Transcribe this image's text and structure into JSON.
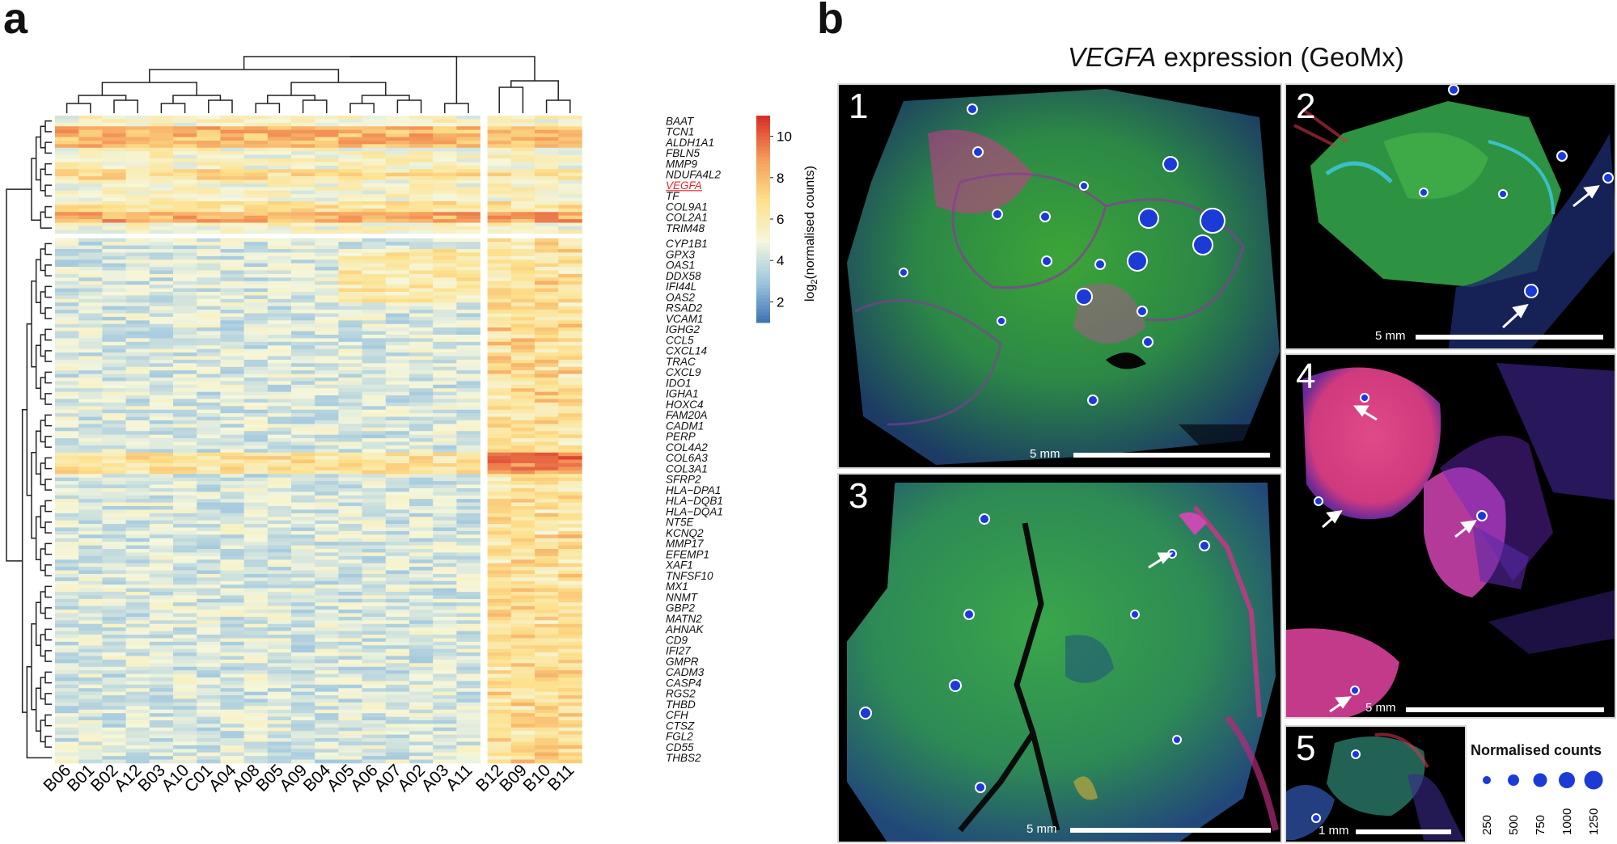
{
  "panel_a": {
    "letter": "a",
    "colorbar_label": "log2(normalised counts)",
    "colorbar_label_parts": {
      "pre": "log",
      "sub": "2",
      "post": "(normalised counts)"
    }
  },
  "panel_b": {
    "letter": "b",
    "title_gene": "VEGFA",
    "title_rest": " expression (GeoMx)",
    "images": [
      {
        "number": "1",
        "scale": "5 mm"
      },
      {
        "number": "2",
        "scale": "5 mm"
      },
      {
        "number": "3",
        "scale": "5 mm"
      },
      {
        "number": "4",
        "scale": "5 mm"
      },
      {
        "number": "5",
        "scale": "1 mm"
      }
    ],
    "size_legend": {
      "title": "Normalised counts",
      "values": [
        "250",
        "500",
        "750",
        "1000",
        "1250"
      ]
    }
  },
  "chart_data": {
    "type": "heatmap",
    "title": "",
    "samples": [
      "B06",
      "B01",
      "B02",
      "A12",
      "B03",
      "A10",
      "C01",
      "A04",
      "A08",
      "B05",
      "A09",
      "B04",
      "A05",
      "A06",
      "A07",
      "A02",
      "A03",
      "A11",
      "B12",
      "B09",
      "B10",
      "B11"
    ],
    "sample_groups": [
      18,
      4
    ],
    "genes": [
      "BAAT",
      "TCN1",
      "ALDH1A1",
      "FBLN5",
      "MMP9",
      "NDUFA4L2",
      "VEGFA",
      "TF",
      "COL9A1",
      "COL2A1",
      "TRIM48",
      "CYP1B1",
      "GPX3",
      "OAS1",
      "DDX58",
      "IFI44L",
      "OAS2",
      "RSAD2",
      "VCAM1",
      "IGHG2",
      "CCL5",
      "CXCL14",
      "TRAC",
      "CXCL9",
      "IDO1",
      "IGHA1",
      "HOXC4",
      "FAM20A",
      "CADM1",
      "PERP",
      "COL4A2",
      "COL6A3",
      "COL3A1",
      "SFRP2",
      "HLA−DPA1",
      "HLA−DQB1",
      "HLA−DQA1",
      "NT5E",
      "KCNQ2",
      "MMP17",
      "EFEMP1",
      "XAF1",
      "TNFSF10",
      "MX1",
      "NNMT",
      "GBP2",
      "MATN2",
      "AHNAK",
      "CD9",
      "IFI27",
      "GMPR",
      "CADM3",
      "CASP4",
      "RGS2",
      "THBD",
      "CFH",
      "CTSZ",
      "FGL2",
      "CD55",
      "THBS2"
    ],
    "gene_groups": [
      11,
      49
    ],
    "highlighted_gene": "VEGFA",
    "highlight_color": "#e8262b",
    "colorbar": {
      "min": 1,
      "max": 11,
      "ticks": [
        2,
        4,
        6,
        8,
        10
      ],
      "label": "log2(normalised counts)",
      "colors": [
        "#3a6fb0",
        "#9cc5df",
        "#f5f7dc",
        "#fde08a",
        "#f59b5a",
        "#d73027"
      ]
    },
    "rows_per_gene_scale": 1
  }
}
